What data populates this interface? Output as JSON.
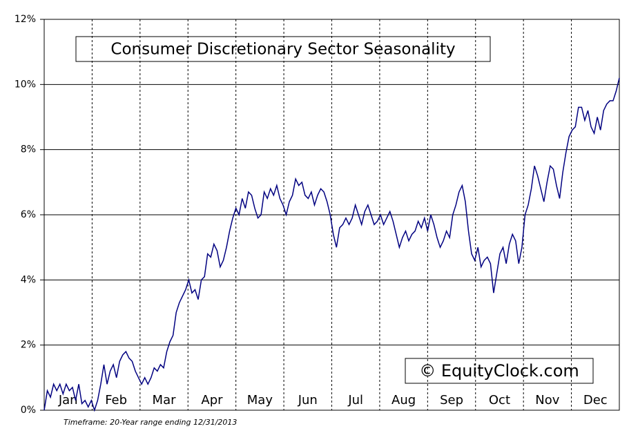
{
  "chart_data": {
    "type": "line",
    "title": "Consumer Discretionary Sector Seasonality",
    "watermark": "© EquityClock.com",
    "footnote": "Timeframe: 20-Year range ending 12/31/2013",
    "months": [
      "Jan",
      "Feb",
      "Mar",
      "Apr",
      "May",
      "Jun",
      "Jul",
      "Aug",
      "Sep",
      "Oct",
      "Nov",
      "Dec"
    ],
    "series": [
      {
        "name": "Consumer Discretionary",
        "color": "#000080",
        "values": [
          0,
          0.6,
          0.4,
          0.8,
          0.6,
          0.8,
          0.5,
          0.8,
          0.6,
          0.7,
          0.3,
          0.8,
          0.2,
          0.3,
          0.1,
          0.3,
          0.0,
          0.3,
          0.8,
          1.4,
          0.8,
          1.2,
          1.4,
          1.0,
          1.5,
          1.7,
          1.8,
          1.6,
          1.5,
          1.2,
          1.0,
          0.8,
          1.0,
          0.8,
          1.0,
          1.3,
          1.2,
          1.4,
          1.3,
          1.8,
          2.1,
          2.3,
          3.0,
          3.3,
          3.5,
          3.7,
          4.0,
          3.6,
          3.7,
          3.4,
          4.0,
          4.1,
          4.8,
          4.7,
          5.1,
          4.9,
          4.4,
          4.6,
          5.0,
          5.5,
          5.9,
          6.2,
          6.0,
          6.5,
          6.2,
          6.7,
          6.6,
          6.2,
          5.9,
          6.0,
          6.7,
          6.5,
          6.8,
          6.6,
          6.9,
          6.5,
          6.3,
          6.0,
          6.4,
          6.6,
          7.1,
          6.9,
          7.0,
          6.6,
          6.5,
          6.7,
          6.3,
          6.6,
          6.8,
          6.7,
          6.4,
          6.0,
          5.4,
          5.0,
          5.6,
          5.7,
          5.9,
          5.7,
          5.9,
          6.3,
          6.0,
          5.7,
          6.1,
          6.3,
          6.0,
          5.7,
          5.8,
          6.0,
          5.7,
          5.9,
          6.1,
          5.8,
          5.4,
          5.0,
          5.3,
          5.5,
          5.2,
          5.4,
          5.5,
          5.8,
          5.6,
          5.9,
          5.5,
          6.0,
          5.7,
          5.3,
          5.0,
          5.2,
          5.5,
          5.3,
          6.0,
          6.3,
          6.7,
          6.9,
          6.4,
          5.5,
          4.8,
          4.6,
          5.0,
          4.4,
          4.6,
          4.7,
          4.5,
          3.6,
          4.2,
          4.8,
          5.0,
          4.5,
          5.1,
          5.4,
          5.2,
          4.5,
          5.0,
          6.0,
          6.3,
          6.8,
          7.5,
          7.2,
          6.8,
          6.4,
          7.0,
          7.5,
          7.4,
          6.9,
          6.5,
          7.3,
          7.9,
          8.4,
          8.6,
          8.7,
          9.3,
          9.3,
          8.9,
          9.2,
          8.7,
          8.5,
          9.0,
          8.6,
          9.2,
          9.4,
          9.5,
          9.5,
          9.8,
          10.2
        ]
      }
    ],
    "ylim": [
      0,
      12
    ],
    "yticks": [
      {
        "value": 0,
        "label": "0%"
      },
      {
        "value": 2,
        "label": "2%"
      },
      {
        "value": 4,
        "label": "4%"
      },
      {
        "value": 6,
        "label": "6%"
      },
      {
        "value": 8,
        "label": "8%"
      },
      {
        "value": 10,
        "label": "10%"
      },
      {
        "value": 12,
        "label": "12%"
      }
    ],
    "grid": true
  }
}
